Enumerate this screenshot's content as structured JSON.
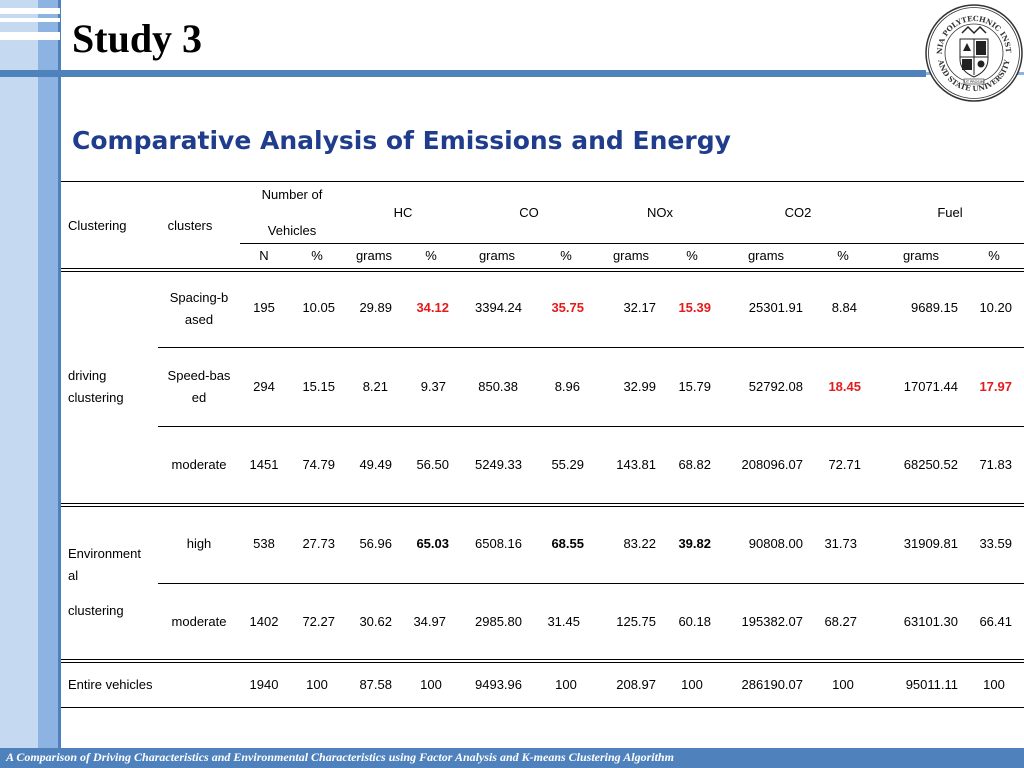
{
  "header": {
    "title": "Study 3"
  },
  "subtitle": "Comparative Analysis of Emissions and Energy",
  "seal": {
    "top_text": "VIRGINIA POLYTECHNIC INSTITUTE",
    "bottom_text": "AND STATE UNIVERSITY",
    "motto": "UT PROSIM"
  },
  "table": {
    "h_clustering": "Clustering",
    "h_clusters": "clusters",
    "h_number_l1": "Number of",
    "h_number_l2": "Vehicles",
    "h_hc": "HC",
    "h_co": "CO",
    "h_nox": "NOx",
    "h_co2": "CO2",
    "h_fuel": "Fuel",
    "sub": [
      "N",
      "%",
      "grams",
      "%",
      "grams",
      "%",
      "grams",
      "%",
      "grams",
      "%",
      "grams",
      "%"
    ],
    "group_driving_l1": "driving",
    "group_driving_l2": "clustering",
    "group_env_l1": "Environment",
    "group_env_l2": "al",
    "group_env_l3": "clustering",
    "r1_l1": "Spacing-b",
    "r1_l2": "ased",
    "r2_l1": "Speed-bas",
    "r2_l2": "ed",
    "rows": [
      [
        "195",
        "10.05",
        "29.89",
        "34.12",
        "3394.24",
        "35.75",
        "32.17",
        "15.39",
        "25301.91",
        "8.84",
        "9689.15",
        "10.20"
      ],
      [
        "294",
        "15.15",
        "8.21",
        "9.37",
        "850.38",
        "8.96",
        "32.99",
        "15.79",
        "52792.08",
        "18.45",
        "17071.44",
        "17.97"
      ],
      [
        "moderate",
        "1451",
        "74.79",
        "49.49",
        "56.50",
        "5249.33",
        "55.29",
        "143.81",
        "68.82",
        "208096.07",
        "72.71",
        "68250.52",
        "71.83"
      ],
      [
        "high",
        "538",
        "27.73",
        "56.96",
        "65.03",
        "6508.16",
        "68.55",
        "83.22",
        "39.82",
        "90808.00",
        "31.73",
        "31909.81",
        "33.59"
      ],
      [
        "moderate",
        "1402",
        "72.27",
        "30.62",
        "34.97",
        "2985.80",
        "31.45",
        "125.75",
        "60.18",
        "195382.07",
        "68.27",
        "63101.30",
        "66.41"
      ],
      [
        "Entire vehicles",
        "1940",
        "100",
        "87.58",
        "100",
        "9493.96",
        "100",
        "208.97",
        "100",
        "286190.07",
        "100",
        "95011.11",
        "100"
      ]
    ],
    "highlight_red": "#e31b1b"
  },
  "footer": "A Comparison of Driving Characteristics and Environmental Characteristics using Factor Analysis and  K-means Clustering Algorithm"
}
